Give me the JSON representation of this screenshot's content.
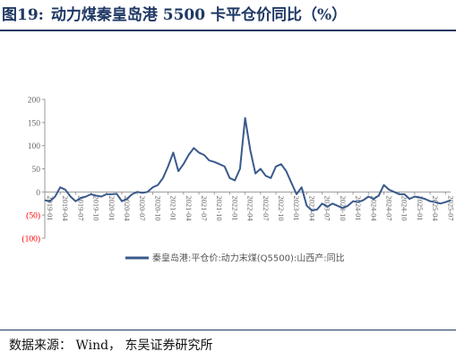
{
  "figure": {
    "number": "图19:",
    "title": "动力煤秦皇岛港 5500 卡平仓价同比（%）"
  },
  "source": "数据来源： Wind， 东吴证券研究所",
  "colors": {
    "series": "#3a5a8c",
    "axis": "#999999",
    "tick_text": "#666666",
    "negative_text": "#ff0000",
    "title": "#1f3864"
  },
  "chart_data": {
    "type": "line",
    "y_ticks": [
      {
        "value": 200,
        "label": "200"
      },
      {
        "value": 150,
        "label": "150"
      },
      {
        "value": 100,
        "label": "100"
      },
      {
        "value": 50,
        "label": "50"
      },
      {
        "value": 0,
        "label": "0"
      },
      {
        "value": -50,
        "label": "(50)"
      },
      {
        "value": -100,
        "label": "(100)"
      }
    ],
    "ylim": [
      -100,
      200
    ],
    "x_ticks": [
      "2019-01",
      "2019-04",
      "2019-07",
      "2019-10",
      "2020-01",
      "2020-04",
      "2020-07",
      "2020-10",
      "2021-01",
      "2021-04",
      "2021-07",
      "2021-10",
      "2022-01",
      "2022-04",
      "2022-07",
      "2022-10",
      "2023-01",
      "2023-04",
      "2023-07",
      "2023-10",
      "2024-01",
      "2024-04",
      "2024-07",
      "2024-10",
      "2025-01",
      "2025-04",
      "2025-07"
    ],
    "xlim": [
      "2019-01",
      "2025-08"
    ],
    "legend": {
      "position": "bottom",
      "label": "秦皇岛港:平仓价:动力末煤(Q5500):山西产:同比"
    },
    "series": [
      {
        "name": "秦皇岛港:平仓价:动力末煤(Q5500):山西产:同比",
        "x": [
          "2019-01",
          "2019-02",
          "2019-03",
          "2019-04",
          "2019-05",
          "2019-06",
          "2019-07",
          "2019-08",
          "2019-09",
          "2019-10",
          "2019-11",
          "2019-12",
          "2020-01",
          "2020-02",
          "2020-03",
          "2020-04",
          "2020-05",
          "2020-06",
          "2020-07",
          "2020-08",
          "2020-09",
          "2020-10",
          "2020-11",
          "2020-12",
          "2021-01",
          "2021-02",
          "2021-03",
          "2021-04",
          "2021-05",
          "2021-06",
          "2021-07",
          "2021-08",
          "2021-09",
          "2021-10",
          "2021-11",
          "2021-12",
          "2022-01",
          "2022-02",
          "2022-03",
          "2022-04",
          "2022-05",
          "2022-06",
          "2022-07",
          "2022-08",
          "2022-09",
          "2022-10",
          "2022-11",
          "2022-12",
          "2023-01",
          "2023-02",
          "2023-03",
          "2023-04",
          "2023-05",
          "2023-06",
          "2023-07",
          "2023-08",
          "2023-09",
          "2023-10",
          "2023-11",
          "2023-12",
          "2024-01",
          "2024-02",
          "2024-03",
          "2024-04",
          "2024-05",
          "2024-06",
          "2024-07",
          "2024-08",
          "2024-09",
          "2024-10",
          "2024-11",
          "2024-12",
          "2025-01",
          "2025-02",
          "2025-03",
          "2025-04",
          "2025-05",
          "2025-06",
          "2025-07",
          "2025-08"
        ],
        "values": [
          -18,
          -20,
          -10,
          10,
          5,
          -10,
          -20,
          -13,
          -10,
          -5,
          -8,
          -10,
          -5,
          -5,
          -4,
          -20,
          -15,
          -5,
          0,
          -2,
          0,
          10,
          15,
          30,
          55,
          85,
          45,
          60,
          80,
          95,
          85,
          80,
          68,
          65,
          60,
          55,
          30,
          25,
          50,
          160,
          90,
          40,
          50,
          35,
          30,
          55,
          60,
          45,
          20,
          -5,
          10,
          -30,
          -40,
          -38,
          -25,
          -32,
          -25,
          -30,
          -35,
          -30,
          -20,
          -22,
          -18,
          -10,
          -15,
          -8,
          15,
          5,
          0,
          -5,
          -5,
          -15,
          -10,
          -12,
          -15,
          -20,
          -22,
          -25,
          -22,
          -18
        ]
      }
    ]
  }
}
